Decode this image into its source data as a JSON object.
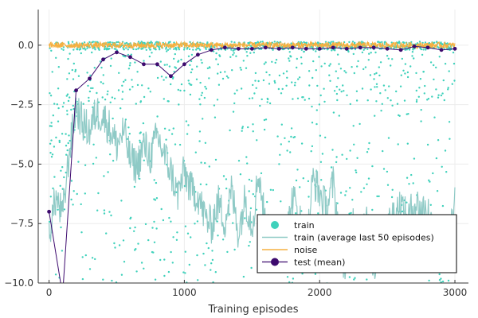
{
  "chart_data": {
    "type": "scatter",
    "xlabel": "Training episodes",
    "ylabel": "",
    "xlim": [
      -80,
      3100
    ],
    "ylim": [
      -10,
      1.5
    ],
    "x_ticks": [
      0,
      1000,
      2000,
      3000
    ],
    "x_tick_labels": [
      "0",
      "1000",
      "2000",
      "3000"
    ],
    "y_ticks": [
      0,
      -2.5,
      -5,
      -7.5,
      -10
    ],
    "y_tick_labels": [
      "0.0",
      "−2.5",
      "−5.0",
      "−7.5",
      "−10.0"
    ],
    "grid": true,
    "legend_position": "bottom-right",
    "series": [
      {
        "name": "train",
        "kind": "scatter",
        "color": "#3fd1bb",
        "points_per_episode": 1,
        "episodes": [
          0,
          3000
        ],
        "description_values": "per-episode returns, mostly between 0 and -10, many near 0"
      },
      {
        "name": "train (average last 50 episodes)",
        "kind": "line",
        "color": "#8fcac6",
        "x": [
          0,
          50,
          100,
          150,
          200,
          250,
          300,
          350,
          400,
          450,
          500,
          550,
          600,
          650,
          700,
          750,
          800,
          850,
          900,
          950,
          1000,
          1050,
          1100,
          1150,
          1200,
          1250,
          1300,
          1350,
          1400,
          1450,
          1500,
          1550,
          1600,
          1650,
          1700,
          1750,
          1800,
          1850,
          1900,
          1950,
          2000,
          2050,
          2100,
          2150,
          2200,
          2250,
          2300,
          2350,
          2400,
          2450,
          2500,
          2550,
          2600,
          2650,
          2700,
          2750,
          2800,
          2850,
          2900,
          2950,
          3000
        ],
        "y": [
          -7.9,
          -6.4,
          -7.2,
          -4.5,
          -2.6,
          -3.3,
          -3.6,
          -2.8,
          -3.0,
          -3.5,
          -4.2,
          -3.6,
          -4.8,
          -5.1,
          -4.2,
          -4.7,
          -3.8,
          -4.6,
          -5.3,
          -6.3,
          -5.3,
          -6.1,
          -6.3,
          -7.2,
          -7.6,
          -6.6,
          -7.4,
          -6.1,
          -7.9,
          -6.4,
          -7.6,
          -5.3,
          -7.6,
          -8.3,
          -7.9,
          -8.2,
          -6.4,
          -7.2,
          -8.8,
          -5.6,
          -6.2,
          -6.9,
          -5.8,
          -8.1,
          -9.8,
          -7.3,
          -8.2,
          -7.4,
          -9.5,
          -8.0,
          -7.7,
          -7.0,
          -6.7,
          -7.4,
          -6.6,
          -6.9,
          -6.9,
          -8.1,
          -7.9,
          -8.4,
          -6.6
        ]
      },
      {
        "name": "noise",
        "kind": "line",
        "color": "#f5b041",
        "x": [
          0,
          3000
        ],
        "y": [
          0.0,
          0.0
        ]
      },
      {
        "name": "test (mean)",
        "kind": "line+markers",
        "color": "#3d0a6e",
        "x": [
          0,
          100,
          200,
          300,
          400,
          500,
          600,
          700,
          800,
          900,
          1000,
          1100,
          1200,
          1300,
          1400,
          1500,
          1600,
          1700,
          1800,
          1900,
          2000,
          2100,
          2200,
          2300,
          2400,
          2500,
          2600,
          2700,
          2800,
          2900,
          3000
        ],
        "y": [
          -7.0,
          -10.5,
          -1.9,
          -1.4,
          -0.6,
          -0.3,
          -0.5,
          -0.8,
          -0.8,
          -1.3,
          -0.8,
          -0.4,
          -0.2,
          -0.1,
          -0.15,
          -0.15,
          -0.1,
          -0.15,
          -0.1,
          -0.15,
          -0.15,
          -0.1,
          -0.15,
          -0.1,
          -0.1,
          -0.15,
          -0.2,
          -0.05,
          -0.1,
          -0.2,
          -0.15
        ]
      }
    ]
  }
}
